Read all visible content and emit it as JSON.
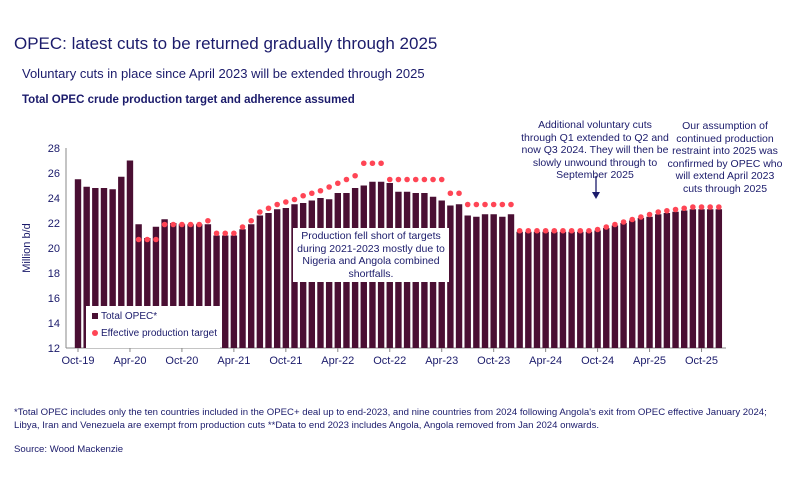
{
  "title": "OPEC: latest cuts to be returned gradually through 2025",
  "subtitle": "Voluntary cuts in place since April 2023 will be extended through 2025",
  "footnote": "*Total OPEC includes only the ten countries included in the OPEC+ deal up to end-2023, and nine countries from 2024 following Angola's exit from OPEC effective January 2024; Libya, Iran and Venezuela are exempt from production cuts **Data to end 2023 includes Angola, Angola removed from Jan 2024 onwards.",
  "source": "Source: Wood Mackenzie",
  "colors": {
    "bars": "#4a0f33",
    "target": "#ff4555",
    "text": "#1b1b6b"
  },
  "chart_data": {
    "type": "bar",
    "title": "Total OPEC crude production target and adherence assumed",
    "ylabel": "Million b/d",
    "ylim": [
      12,
      28
    ],
    "yticks": [
      "12",
      "14",
      "16",
      "18",
      "20",
      "22",
      "24",
      "26",
      "28"
    ],
    "grid": false,
    "legend_placement": "bottom-left",
    "start_month": "Oct-19",
    "xticks": [
      "Oct-19",
      "Apr-20",
      "Oct-20",
      "Apr-21",
      "Oct-21",
      "Apr-22",
      "Oct-22",
      "Apr-23",
      "Oct-23",
      "Apr-24",
      "Oct-24",
      "Apr-25",
      "Oct-25"
    ],
    "series": [
      {
        "name": "Total OPEC*",
        "kind": "bar",
        "values": [
          25.5,
          24.9,
          24.8,
          24.8,
          24.7,
          25.7,
          27.0,
          21.9,
          20.8,
          21.7,
          22.3,
          22.0,
          21.9,
          21.9,
          21.9,
          21.9,
          21.0,
          21.0,
          21.0,
          21.5,
          21.9,
          22.6,
          22.8,
          23.1,
          23.2,
          23.5,
          23.6,
          23.8,
          24.0,
          23.9,
          24.4,
          24.4,
          24.8,
          25.0,
          25.3,
          25.3,
          25.2,
          24.5,
          24.5,
          24.4,
          24.4,
          24.1,
          23.8,
          23.4,
          23.5,
          22.6,
          22.5,
          22.7,
          22.7,
          22.5,
          22.7,
          21.3,
          21.3,
          21.3,
          21.3,
          21.3,
          21.3,
          21.3,
          21.3,
          21.3,
          21.4,
          21.6,
          21.8,
          22.0,
          22.2,
          22.4,
          22.5,
          22.7,
          22.8,
          22.9,
          23.0,
          23.1,
          23.1,
          23.1,
          23.1
        ]
      },
      {
        "name": "Effective production target",
        "kind": "dot",
        "values": [
          null,
          null,
          null,
          null,
          null,
          null,
          null,
          20.6,
          20.6,
          20.6,
          21.8,
          21.8,
          21.8,
          21.8,
          21.8,
          22.1,
          21.1,
          21.1,
          21.1,
          21.6,
          22.1,
          22.8,
          23.1,
          23.4,
          23.6,
          23.8,
          24.1,
          24.3,
          24.5,
          24.8,
          25.1,
          25.4,
          25.7,
          26.7,
          26.7,
          26.7,
          25.4,
          25.4,
          25.4,
          25.4,
          25.4,
          25.4,
          25.4,
          24.3,
          24.3,
          23.4,
          23.4,
          23.4,
          23.4,
          23.4,
          23.4,
          21.3,
          21.3,
          21.3,
          21.3,
          21.3,
          21.3,
          21.3,
          21.3,
          21.3,
          21.4,
          21.6,
          21.8,
          22.0,
          22.2,
          22.4,
          22.6,
          22.8,
          22.9,
          23.0,
          23.1,
          23.2,
          23.2,
          23.2,
          23.2
        ]
      }
    ],
    "annotations": [
      "Production fell short of targets during 2021-2023 mostly due to Nigeria and Angola combined shortfalls.",
      "Additional voluntary cuts through Q1 extended to Q2 and now Q3 2024. They will then be slowly unwound through to September 2025",
      "Our assumption of continued production restraint into 2025 was confirmed by OPEC who will extend April 2023 cuts through 2025"
    ]
  }
}
